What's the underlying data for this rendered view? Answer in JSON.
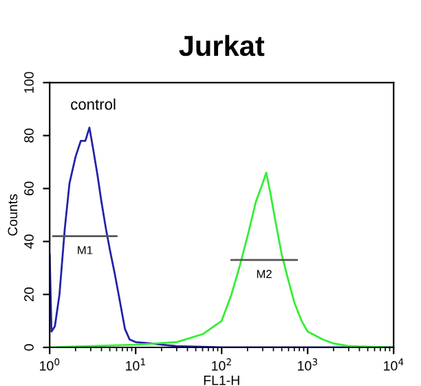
{
  "chart_data": {
    "type": "line",
    "title": "Jurkat",
    "xlabel": "FL1-H",
    "ylabel": "Counts",
    "log": "x",
    "grid": false,
    "legend": false,
    "xlim": [
      1,
      10000
    ],
    "ylim": [
      0,
      100
    ],
    "xticks": [
      {
        "value": 1,
        "label": "10$^{0}$"
      },
      {
        "value": 10,
        "label": "10$^{1}$"
      },
      {
        "value": 100,
        "label": "10$^{2}$"
      },
      {
        "value": 1000,
        "label": "10$^{3}$"
      },
      {
        "value": 10000,
        "label": "10$^{4}$"
      }
    ],
    "yticks": [
      0,
      20,
      40,
      60,
      80,
      100
    ],
    "annotations": [
      "control",
      "M1",
      "M2"
    ],
    "series": [
      {
        "color": "#2222aa",
        "x": [
          1.0,
          1.05,
          1.15,
          1.3,
          1.5,
          1.7,
          2.0,
          2.3,
          2.6,
          2.9,
          3.2,
          3.6,
          4.0,
          4.5,
          5.0,
          5.7,
          6.5,
          7.5,
          8.5,
          10,
          15,
          20,
          30,
          50,
          100,
          1000,
          10000
        ],
        "values": [
          35,
          6,
          8,
          20,
          45,
          62,
          72,
          78,
          78,
          83,
          75,
          65,
          55,
          45,
          37,
          28,
          18,
          7,
          3,
          2,
          1.5,
          1,
          0.5,
          0.3,
          0,
          0,
          0
        ]
      },
      {
        "color": "#33ee33",
        "x": [
          1,
          10,
          30,
          60,
          100,
          130,
          160,
          200,
          250,
          300,
          330,
          370,
          420,
          500,
          600,
          700,
          850,
          1000,
          1500,
          2000,
          3000,
          10000
        ],
        "values": [
          0,
          1,
          2,
          5,
          10,
          20,
          30,
          42,
          55,
          62,
          66,
          58,
          48,
          35,
          25,
          17,
          10,
          6,
          3,
          1.5,
          0.5,
          0
        ]
      },
      {
        "type": "line",
        "color": "#555555",
        "x": [
          1.1,
          6
        ],
        "values": [
          42,
          42
        ]
      },
      {
        "type": "line",
        "color": "#555555",
        "x": [
          130,
          750
        ],
        "values": [
          33,
          33
        ]
      }
    ]
  }
}
